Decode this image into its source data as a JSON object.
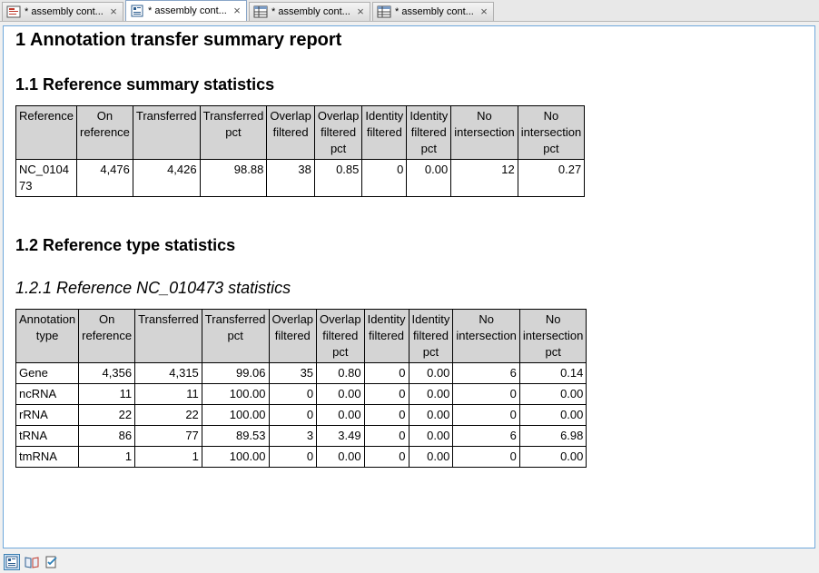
{
  "tabs": [
    {
      "label": "* assembly cont...",
      "icon": "report-icon",
      "active": false
    },
    {
      "label": "* assembly cont...",
      "icon": "document-icon",
      "active": true
    },
    {
      "label": "* assembly cont...",
      "icon": "table-icon",
      "active": false
    },
    {
      "label": "* assembly cont...",
      "icon": "table-icon",
      "active": false
    }
  ],
  "report": {
    "title": "1 Annotation transfer summary report",
    "section1_title": "1.1 Reference summary statistics",
    "section2_title": "1.2 Reference type statistics",
    "subsection_title": "1.2.1 Reference NC_010473 statistics",
    "ref_table": {
      "headers": [
        "Reference",
        "On reference",
        "Transferred",
        "Transferred pct",
        "Overlap filtered",
        "Overlap filtered pct",
        "Identity filtered",
        "Identity filtered pct",
        "No intersection",
        "No intersection pct"
      ],
      "rows": [
        [
          "NC_010473",
          "4,476",
          "4,426",
          "98.88",
          "38",
          "0.85",
          "0",
          "0.00",
          "12",
          "0.27"
        ]
      ]
    },
    "type_table": {
      "headers": [
        "Annotation type",
        "On reference",
        "Transferred",
        "Transferred pct",
        "Overlap filtered",
        "Overlap filtered pct",
        "Identity filtered",
        "Identity filtered pct",
        "No intersection",
        "No intersection pct"
      ],
      "rows": [
        [
          "Gene",
          "4,356",
          "4,315",
          "99.06",
          "35",
          "0.80",
          "0",
          "0.00",
          "6",
          "0.14"
        ],
        [
          "ncRNA",
          "11",
          "11",
          "100.00",
          "0",
          "0.00",
          "0",
          "0.00",
          "0",
          "0.00"
        ],
        [
          "rRNA",
          "22",
          "22",
          "100.00",
          "0",
          "0.00",
          "0",
          "0.00",
          "0",
          "0.00"
        ],
        [
          "tRNA",
          "86",
          "77",
          "89.53",
          "3",
          "3.49",
          "0",
          "0.00",
          "6",
          "6.98"
        ],
        [
          "tmRNA",
          "1",
          "1",
          "100.00",
          "0",
          "0.00",
          "0",
          "0.00",
          "0",
          "0.00"
        ]
      ]
    }
  },
  "bottom_toolbar": [
    {
      "icon": "report-view-icon",
      "selected": true
    },
    {
      "icon": "book-icon",
      "selected": false
    },
    {
      "icon": "edit-checklist-icon",
      "selected": false
    }
  ],
  "colors": {
    "panel_border": "#6fa8dc",
    "header_fill": "#d4d4d4"
  }
}
